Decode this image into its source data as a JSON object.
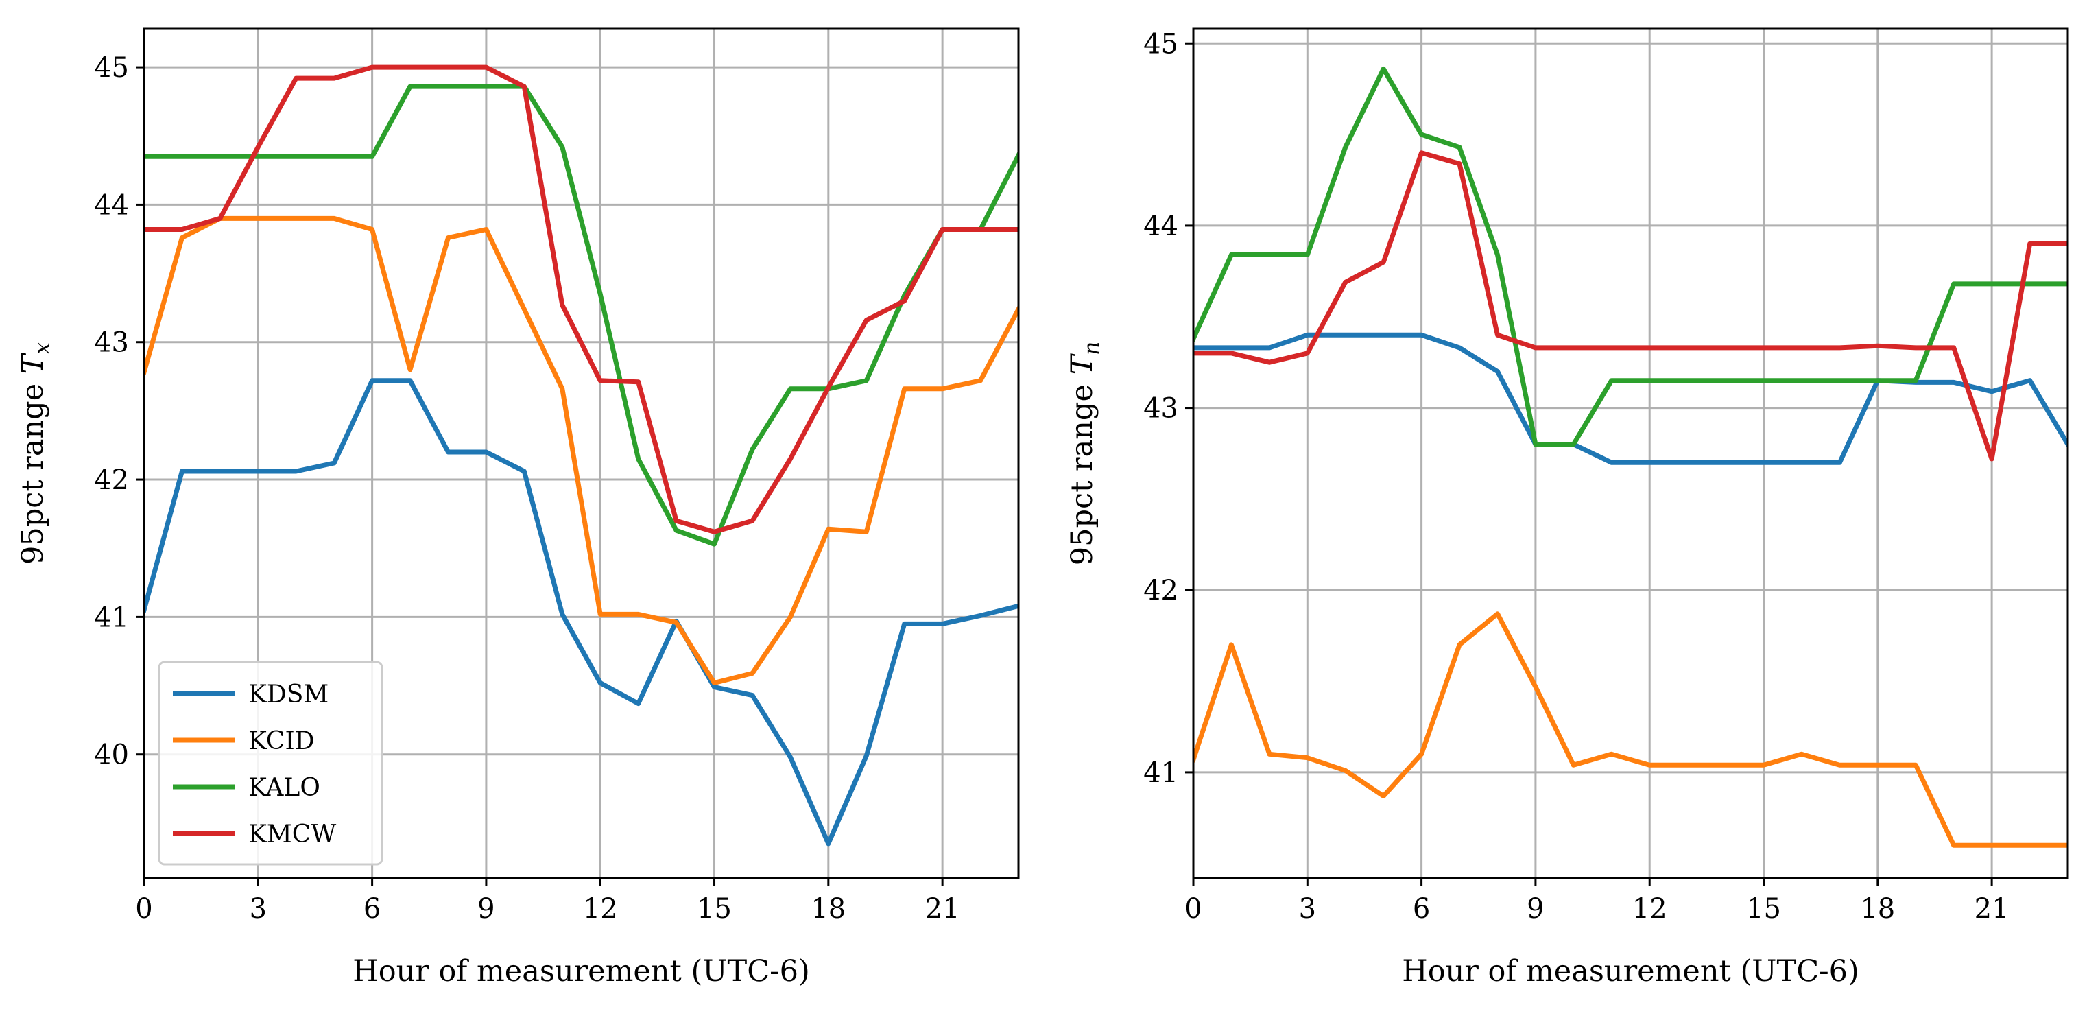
{
  "chart_data": [
    {
      "type": "line",
      "xlabel": "Hour of measurement (UTC-6)",
      "ylabel": "95pct range ",
      "ylabel_symbol": "T",
      "ylabel_subscript": "x",
      "xlim": [
        0,
        23
      ],
      "ylim": [
        39.1,
        45.28
      ],
      "xticks": [
        0,
        3,
        6,
        9,
        12,
        15,
        18,
        21
      ],
      "yticks": [
        40,
        41,
        42,
        43,
        44,
        45
      ],
      "grid": true,
      "legend_position": "lower-left",
      "x": [
        0,
        1,
        2,
        3,
        4,
        5,
        6,
        7,
        8,
        9,
        10,
        11,
        12,
        13,
        14,
        15,
        16,
        17,
        18,
        19,
        20,
        21,
        22,
        23
      ],
      "series": [
        {
          "name": "KDSM",
          "color": "#1f77b4",
          "values": [
            41.05,
            42.06,
            42.06,
            42.06,
            42.06,
            42.12,
            42.72,
            42.72,
            42.2,
            42.2,
            42.06,
            41.02,
            40.52,
            40.37,
            40.97,
            40.49,
            40.43,
            39.98,
            39.35,
            39.99,
            40.95,
            40.95,
            41.01,
            41.08
          ]
        },
        {
          "name": "KCID",
          "color": "#ff7f0e",
          "values": [
            42.78,
            43.76,
            43.9,
            43.9,
            43.9,
            43.9,
            43.82,
            42.8,
            43.76,
            43.82,
            43.24,
            42.66,
            41.02,
            41.02,
            40.96,
            40.52,
            40.59,
            41.0,
            41.64,
            41.62,
            42.66,
            42.66,
            42.72,
            43.24
          ]
        },
        {
          "name": "KALO",
          "color": "#2ca02c",
          "values": [
            44.35,
            44.35,
            44.35,
            44.35,
            44.35,
            44.35,
            44.35,
            44.86,
            44.86,
            44.86,
            44.86,
            44.42,
            43.35,
            42.15,
            41.63,
            41.53,
            42.22,
            42.66,
            42.66,
            42.72,
            43.34,
            43.82,
            43.82,
            44.36
          ]
        },
        {
          "name": "KMCW",
          "color": "#d62728",
          "values": [
            43.82,
            43.82,
            43.9,
            44.42,
            44.92,
            44.92,
            45.0,
            45.0,
            45.0,
            45.0,
            44.86,
            43.27,
            42.72,
            42.71,
            41.7,
            41.62,
            41.7,
            42.15,
            42.67,
            43.16,
            43.3,
            43.82,
            43.82,
            43.82
          ]
        }
      ]
    },
    {
      "type": "line",
      "xlabel": "Hour of measurement (UTC-6)",
      "ylabel": "95pct range ",
      "ylabel_symbol": "T",
      "ylabel_subscript": "n",
      "xlim": [
        0,
        23
      ],
      "ylim": [
        40.42,
        45.08
      ],
      "xticks": [
        0,
        3,
        6,
        9,
        12,
        15,
        18,
        21
      ],
      "yticks": [
        41,
        42,
        43,
        44,
        45
      ],
      "grid": true,
      "x": [
        0,
        1,
        2,
        3,
        4,
        5,
        6,
        7,
        8,
        9,
        10,
        11,
        12,
        13,
        14,
        15,
        16,
        17,
        18,
        19,
        20,
        21,
        22,
        23
      ],
      "series": [
        {
          "color": "#1f77b4",
          "values": [
            43.33,
            43.33,
            43.33,
            43.4,
            43.4,
            43.4,
            43.4,
            43.33,
            43.2,
            42.8,
            42.8,
            42.7,
            42.7,
            42.7,
            42.7,
            42.7,
            42.7,
            42.7,
            43.15,
            43.14,
            43.14,
            43.09,
            43.15,
            42.8
          ]
        },
        {
          "color": "#ff7f0e",
          "values": [
            41.07,
            41.7,
            41.1,
            41.08,
            41.01,
            40.87,
            41.1,
            41.7,
            41.87,
            41.47,
            41.04,
            41.1,
            41.04,
            41.04,
            41.04,
            41.04,
            41.1,
            41.04,
            41.04,
            41.04,
            40.6,
            40.6,
            40.6,
            40.6
          ]
        },
        {
          "color": "#2ca02c",
          "values": [
            43.38,
            43.84,
            43.84,
            43.84,
            44.43,
            44.86,
            44.5,
            44.43,
            43.84,
            42.8,
            42.8,
            43.15,
            43.15,
            43.15,
            43.15,
            43.15,
            43.15,
            43.15,
            43.15,
            43.15,
            43.68,
            43.68,
            43.68,
            43.68
          ]
        },
        {
          "color": "#d62728",
          "values": [
            43.3,
            43.3,
            43.25,
            43.3,
            43.69,
            43.8,
            44.4,
            44.34,
            43.4,
            43.33,
            43.33,
            43.33,
            43.33,
            43.33,
            43.33,
            43.33,
            43.33,
            43.33,
            43.34,
            43.33,
            43.33,
            42.72,
            43.9,
            43.9
          ]
        }
      ]
    }
  ]
}
